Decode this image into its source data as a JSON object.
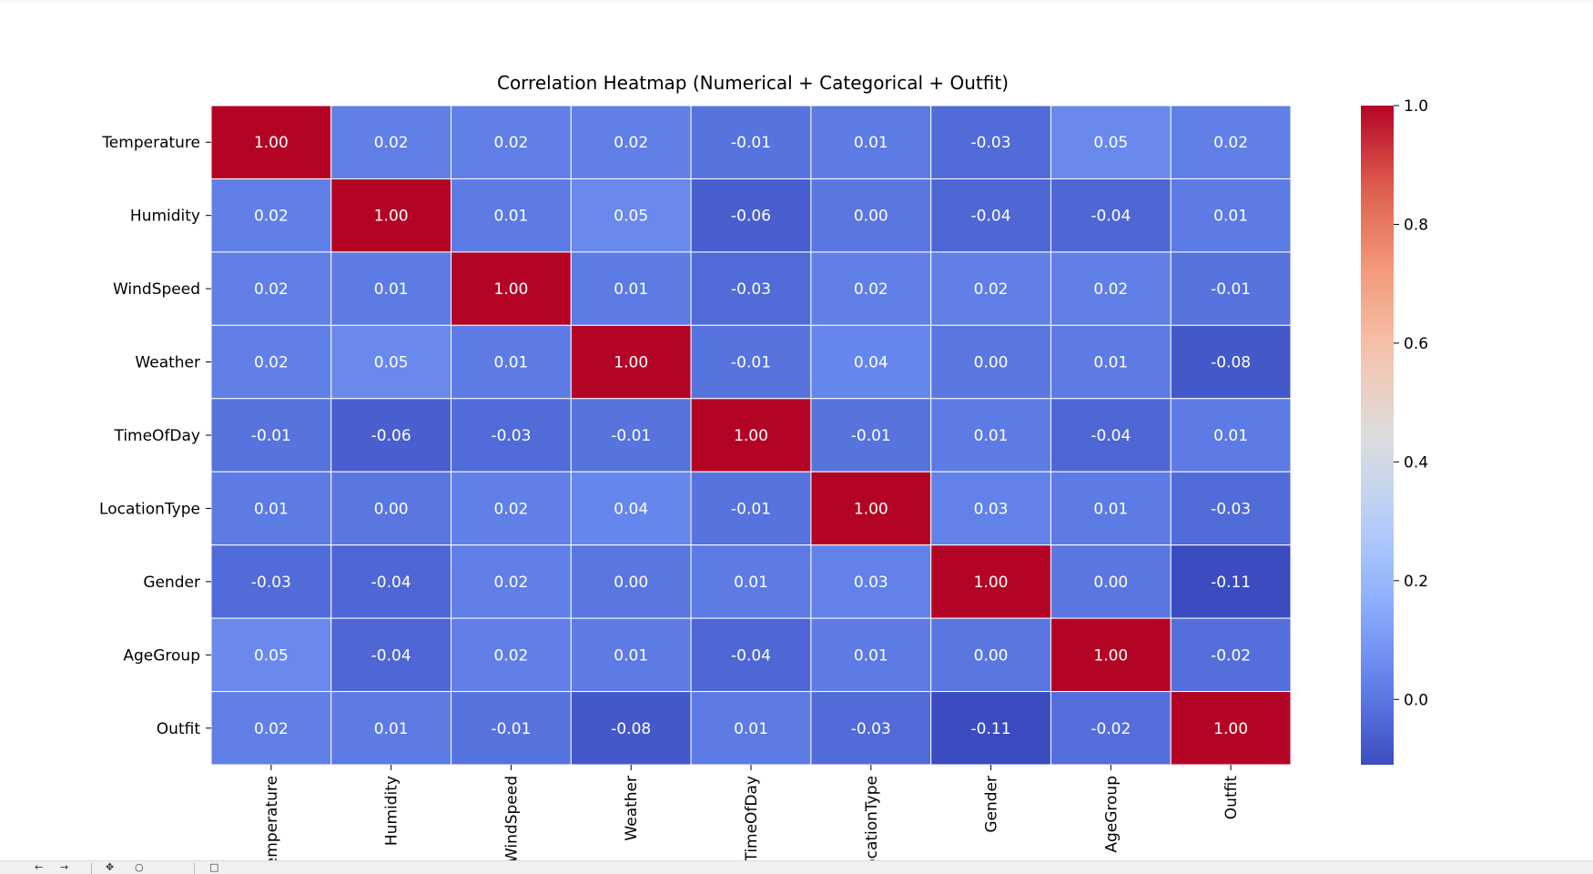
{
  "chart_data": {
    "type": "heatmap",
    "title": "Correlation Heatmap (Numerical + Categorical + Outfit)",
    "row_labels": [
      "Temperature",
      "Humidity",
      "WindSpeed",
      "Weather",
      "TimeOfDay",
      "LocationType",
      "Gender",
      "AgeGroup",
      "Outfit"
    ],
    "column_labels": [
      "Temperature",
      "Humidity",
      "WindSpeed",
      "Weather",
      "TimeOfDay",
      "LocationType",
      "Gender",
      "AgeGroup",
      "Outfit"
    ],
    "values": [
      [
        1.0,
        0.02,
        0.02,
        0.02,
        -0.01,
        0.01,
        -0.03,
        0.05,
        0.02
      ],
      [
        0.02,
        1.0,
        0.01,
        0.05,
        -0.06,
        -0.0,
        -0.04,
        -0.04,
        0.01
      ],
      [
        0.02,
        0.01,
        1.0,
        0.01,
        -0.03,
        0.02,
        0.02,
        0.02,
        -0.01
      ],
      [
        0.02,
        0.05,
        0.01,
        1.0,
        -0.01,
        0.04,
        -0.0,
        0.01,
        -0.08
      ],
      [
        -0.01,
        -0.06,
        -0.03,
        -0.01,
        1.0,
        -0.01,
        0.01,
        -0.04,
        0.01
      ],
      [
        0.01,
        -0.0,
        0.02,
        0.04,
        -0.01,
        1.0,
        0.03,
        0.01,
        -0.03
      ],
      [
        -0.03,
        -0.04,
        0.02,
        -0.0,
        0.01,
        0.03,
        1.0,
        0.0,
        -0.11
      ],
      [
        0.05,
        -0.04,
        0.02,
        0.01,
        -0.04,
        0.01,
        0.0,
        1.0,
        -0.02
      ],
      [
        0.02,
        0.01,
        -0.01,
        -0.08,
        0.01,
        -0.03,
        -0.11,
        -0.02,
        1.0
      ]
    ],
    "annotation_format": "2 decimals",
    "colormap": "coolwarm",
    "vmin": -0.11,
    "vmax": 1.0,
    "colorbar": {
      "ticks": [
        0.0,
        0.2,
        0.4,
        0.6,
        0.8,
        1.0
      ],
      "tick_labels": [
        "0.0",
        "0.2",
        "0.4",
        "0.6",
        "0.8",
        "1.0"
      ],
      "placement": "right"
    },
    "x_tick_rotation": "vertical",
    "grid": false,
    "xlabel": "",
    "ylabel": ""
  }
}
